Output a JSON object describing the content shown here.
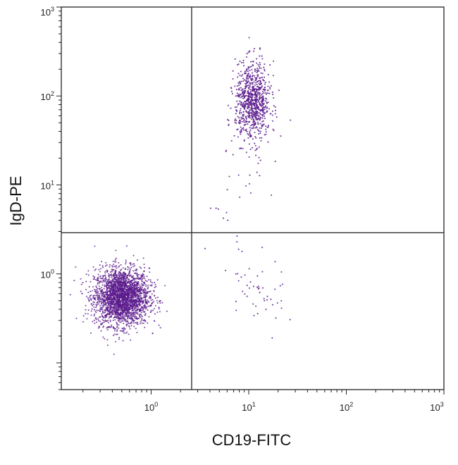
{
  "chart_data": {
    "type": "scatter",
    "xlabel": "CD19-FITC",
    "ylabel": "IgD-PE",
    "x_scale": "log",
    "y_scale": "log",
    "xlim": [
      0.12,
      1000
    ],
    "ylim": [
      0.05,
      1000
    ],
    "x_ticks": [
      {
        "value": 1,
        "label_base": "10",
        "label_exp": "0"
      },
      {
        "value": 10,
        "label_base": "10",
        "label_exp": "1"
      },
      {
        "value": 100,
        "label_base": "10",
        "label_exp": "2"
      },
      {
        "value": 1000,
        "label_base": "10",
        "label_exp": "3"
      }
    ],
    "y_ticks": [
      {
        "value": 1,
        "label_base": "10",
        "label_exp": "0"
      },
      {
        "value": 10,
        "label_base": "10",
        "label_exp": "1"
      },
      {
        "value": 100,
        "label_base": "10",
        "label_exp": "2"
      },
      {
        "value": 1000,
        "label_base": "10",
        "label_exp": "3"
      }
    ],
    "quadrant_gate": {
      "x": 2.6,
      "y": 2.9
    },
    "point_color": "#5b1a8c",
    "grid": false,
    "populations": [
      {
        "center": [
          0.5,
          0.55
        ],
        "spread_log": [
          0.14,
          0.16
        ],
        "approx_events": 2600
      },
      {
        "center": [
          11,
          85
        ],
        "spread_log": [
          0.09,
          0.22
        ],
        "approx_events": 850
      },
      {
        "center": [
          12,
          0.55
        ],
        "spread_log": [
          0.15,
          0.22
        ],
        "approx_events": 45
      },
      {
        "center": [
          8,
          8
        ],
        "spread_log": [
          0.18,
          0.35
        ],
        "approx_events": 30
      }
    ]
  }
}
